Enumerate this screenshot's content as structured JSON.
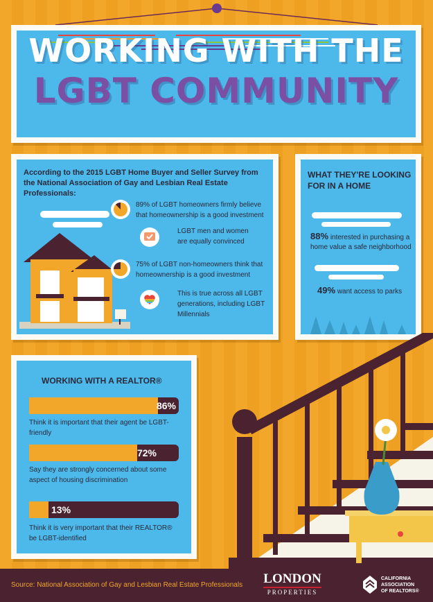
{
  "title": {
    "line1": "WORKING WITH THE",
    "line2": "LGBT COMMUNITY"
  },
  "survey": {
    "intro": "According to the 2015 LGBT Home Buyer and Seller Survey from the National Association of Gay and Lesbian Real Estate Professionals:",
    "stats": [
      {
        "text": "89% of LGBT homeowners firmly believe that homeownership is a good investment",
        "icon": "pie-chart-icon"
      },
      {
        "text": "LGBT men and women are equally convinced",
        "icon": "chat-check-icon"
      },
      {
        "text": "75% of LGBT non-homeowners think that homeownership is a good investment",
        "icon": "pie-chart-icon"
      },
      {
        "text": "This is true across all LGBT generations, including LGBT Millennials",
        "icon": "rainbow-heart-icon"
      }
    ]
  },
  "looking": {
    "heading": "WHAT THEY'RE LOOKING FOR IN A HOME",
    "items": [
      {
        "pct": "88%",
        "text": "interested in purchasing a home value a safe neighborhood"
      },
      {
        "pct": "49%",
        "text": "want access to parks"
      }
    ]
  },
  "realtor": {
    "heading": "WORKING WITH A REALTOR®",
    "bars": [
      {
        "pct_label": "86%",
        "value": 86,
        "text": "Think it is important that their agent be LGBT-friendly"
      },
      {
        "pct_label": "72%",
        "value": 72,
        "text": "Say they are strongly concerned about some aspect of housing discrimination"
      },
      {
        "pct_label": "13%",
        "value": 13,
        "text": "Think it is very important that their REALTOR® be LGBT-identified"
      }
    ]
  },
  "footer": {
    "source": "Source: National Association of Gay and Lesbian Real Estate Professionals",
    "logo1_top": "LONDON",
    "logo1_bottom": "PROPERTIES",
    "logo2_line1": "CALIFORNIA",
    "logo2_line2": "ASSOCIATION",
    "logo2_line3": "OF REALTORS®"
  },
  "colors": {
    "background": "#f3a72a",
    "panel": "#4db8ea",
    "title_purple": "#7a4fa4",
    "dark": "#4a2230",
    "logo_blue": "#2b4f9e"
  }
}
